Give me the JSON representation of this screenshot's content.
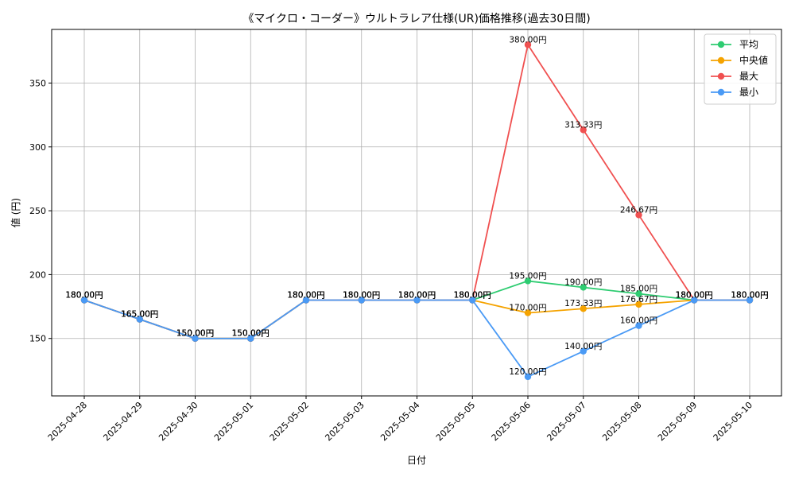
{
  "chart_data": {
    "type": "line",
    "title": "《マイクロ・コーダー》ウルトラレア仕様(UR)価格推移(過去30日間)",
    "xlabel": "日付",
    "ylabel": "値 (円)",
    "ylim": [
      105,
      392
    ],
    "yticks": [
      150,
      200,
      250,
      300,
      350
    ],
    "grid": true,
    "legend_position": "top-right",
    "categories": [
      "2025-04-28",
      "2025-04-29",
      "2025-04-30",
      "2025-05-01",
      "2025-05-02",
      "2025-05-03",
      "2025-05-04",
      "2025-05-05",
      "2025-05-06",
      "2025-05-07",
      "2025-05-08",
      "2025-05-09",
      "2025-05-10"
    ],
    "series": [
      {
        "name": "平均",
        "color": "#2ecc71",
        "values": [
          180.0,
          165.0,
          150.0,
          150.0,
          180.0,
          180.0,
          180.0,
          180.0,
          195.0,
          190.0,
          185.0,
          180.0,
          180.0
        ],
        "labels": [
          "180.00円",
          "165.00円",
          "150.00円",
          "150.00円",
          "180.00円",
          "180.00円",
          "180.00円",
          "180.00円",
          "195.00円",
          "190.00円",
          "185.00円",
          "180.00円",
          "180.00円"
        ]
      },
      {
        "name": "中央値",
        "color": "#f5a300",
        "values": [
          180.0,
          165.0,
          150.0,
          150.0,
          180.0,
          180.0,
          180.0,
          180.0,
          170.0,
          173.33,
          176.67,
          180.0,
          180.0
        ],
        "labels": [
          "180.00円",
          "165.00円",
          "150.00円",
          "150.00円",
          "180.00円",
          "180.00円",
          "180.00円",
          "180.00円",
          "170.00円",
          "173.33円",
          "176.67円",
          "180.00円",
          "180.00円"
        ]
      },
      {
        "name": "最大",
        "color": "#f05050",
        "values": [
          180.0,
          165.0,
          150.0,
          150.0,
          180.0,
          180.0,
          180.0,
          180.0,
          380.0,
          313.33,
          246.67,
          180.0,
          180.0
        ],
        "labels": [
          "180.00円",
          "165.00円",
          "150.00円",
          "150.00円",
          "180.00円",
          "180.00円",
          "180.00円",
          "180.00円",
          "380.00円",
          "313.33円",
          "246.67円",
          "180.00円",
          "180.00円"
        ]
      },
      {
        "name": "最小",
        "color": "#4a9af5",
        "values": [
          180.0,
          165.0,
          150.0,
          150.0,
          180.0,
          180.0,
          180.0,
          180.0,
          120.0,
          140.0,
          160.0,
          180.0,
          180.0
        ],
        "labels": [
          "180.00円",
          "165.00円",
          "150.00円",
          "150.00円",
          "180.00円",
          "180.00円",
          "180.00円",
          "180.00円",
          "120.00円",
          "140.00円",
          "160.00円",
          "180.00円",
          "180.00円"
        ]
      }
    ]
  }
}
